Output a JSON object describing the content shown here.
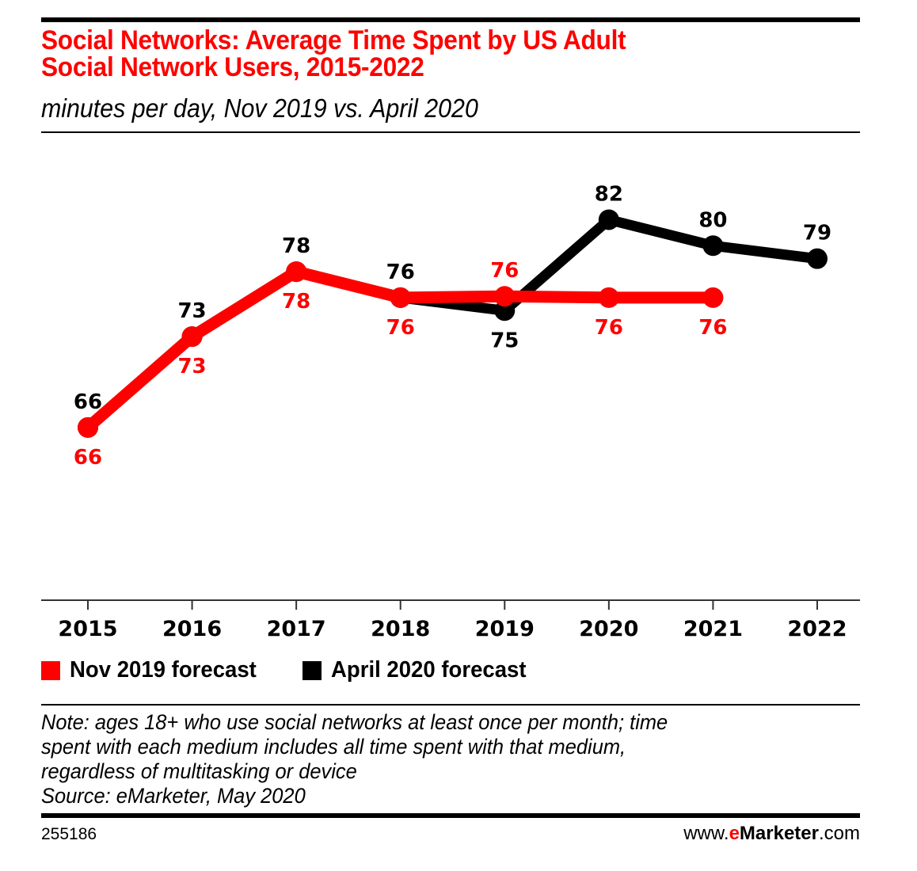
{
  "header": {
    "title_line1": "Social Networks: Average Time Spent by US Adult",
    "title_line2": "Social Network Users, 2015-2022",
    "subtitle": "minutes per day, Nov 2019 vs. April 2020"
  },
  "colors": {
    "title": "#ff0000",
    "nov_2019": "#ff0000",
    "april_2020": "#000000",
    "brand_accent": "#ff0000"
  },
  "chart_data": {
    "type": "line",
    "title": "Social Networks: Average Time Spent by US Adult Social Network Users, 2015-2022",
    "subtitle": "minutes per day, Nov 2019 vs. April 2020",
    "xlabel": "",
    "ylabel": "",
    "categories": [
      "2015",
      "2016",
      "2017",
      "2018",
      "2019",
      "2020",
      "2021",
      "2022"
    ],
    "ylim": [
      52.7,
      89
    ],
    "grid": false,
    "legend_position": "bottom-left",
    "series": [
      {
        "name": "April 2020 forecast",
        "color": "#000000",
        "values": [
          66,
          73,
          78,
          76,
          75,
          82,
          80,
          79
        ],
        "labels": [
          "66",
          "73",
          "78",
          "76",
          "75",
          "82",
          "80",
          "79"
        ],
        "label_positions": [
          "above",
          "above",
          "above",
          "above",
          "below",
          "above",
          "above",
          "above"
        ]
      },
      {
        "name": "Nov 2019 forecast",
        "color": "#ff0000",
        "values": [
          66,
          73,
          78,
          76,
          76.1,
          76,
          76,
          null
        ],
        "labels": [
          "66",
          "73",
          "78",
          "76",
          "76",
          "76",
          "76",
          null
        ],
        "label_positions": [
          "below",
          "below",
          "below",
          "below",
          "above",
          "below",
          "below",
          null
        ]
      }
    ]
  },
  "legend": {
    "items": [
      {
        "label": "Nov 2019 forecast",
        "color": "#ff0000"
      },
      {
        "label": "April 2020 forecast",
        "color": "#000000"
      }
    ]
  },
  "footer": {
    "note_lines": [
      "Note: ages 18+ who use social networks at least once per month; time",
      "spent with each medium includes all time spent with that medium,",
      "regardless of multitasking or device",
      "Source: eMarketer, May 2020"
    ],
    "chart_id": "255186",
    "brand_prefix": "www.",
    "brand_e": "e",
    "brand_name": "Marketer",
    "brand_suffix": ".com"
  }
}
